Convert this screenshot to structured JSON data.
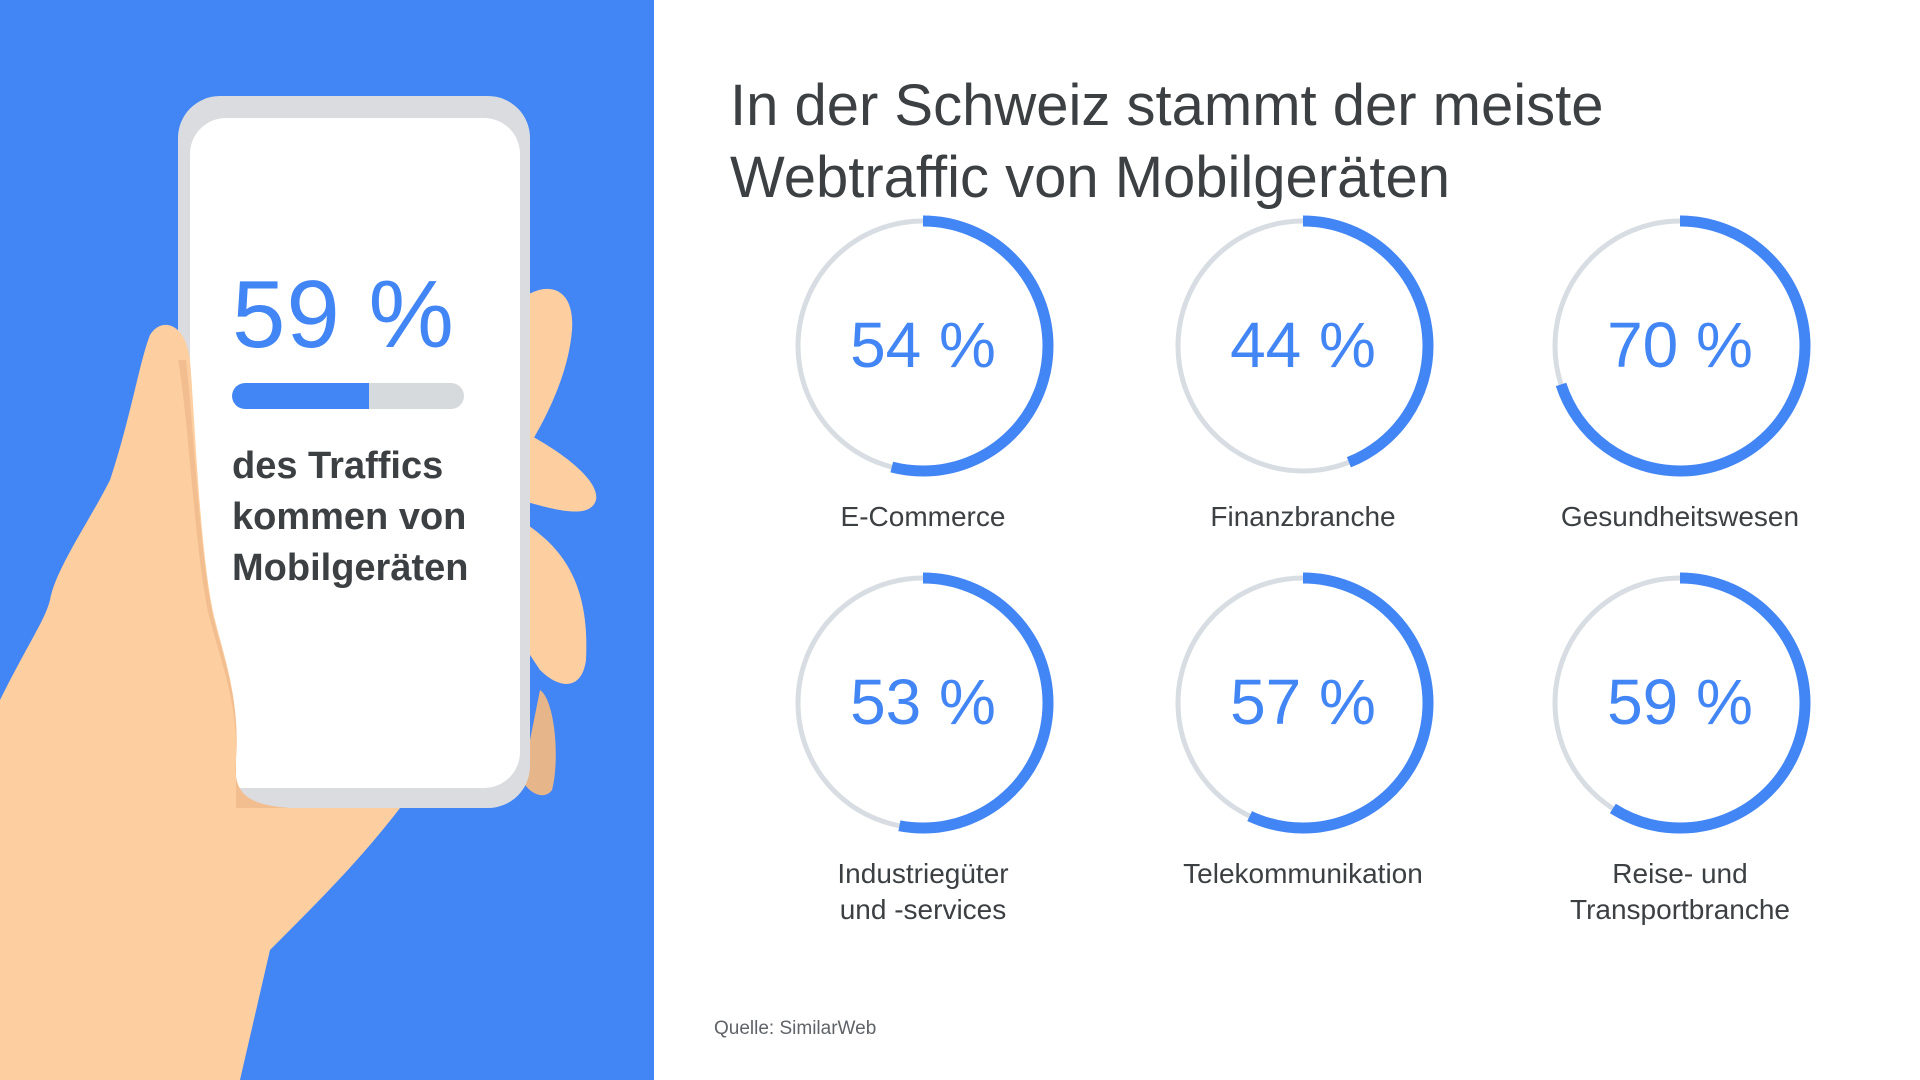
{
  "hero": {
    "value_text": "59 %",
    "fraction": 0.59,
    "caption_lines": [
      "des Traffics",
      "kommen von",
      "Mobilgeräten"
    ]
  },
  "title_lines": [
    "In der Schweiz stammt der meiste",
    "Webtraffic von Mobilgeräten"
  ],
  "chart_data": {
    "type": "donut",
    "title": "In der Schweiz stammt der meiste Webtraffic von Mobilgeräten",
    "unit": "%",
    "ylim": [
      0,
      100
    ],
    "items": [
      {
        "label_lines": [
          "E-Commerce"
        ],
        "value": 54,
        "value_text": "54 %"
      },
      {
        "label_lines": [
          "Finanzbranche"
        ],
        "value": 44,
        "value_text": "44 %"
      },
      {
        "label_lines": [
          "Gesundheitswesen"
        ],
        "value": 70,
        "value_text": "70 %"
      },
      {
        "label_lines": [
          "Industriegüter",
          "und -services"
        ],
        "value": 53,
        "value_text": "53 %"
      },
      {
        "label_lines": [
          "Telekommunikation"
        ],
        "value": 57,
        "value_text": "57 %"
      },
      {
        "label_lines": [
          "Reise- und",
          "Transportbranche"
        ],
        "value": 59,
        "value_text": "59 %"
      }
    ]
  },
  "source": "Quelle: SimilarWeb",
  "colors": {
    "accent": "#4285f4",
    "track": "#d7dde2",
    "text": "#3c4043",
    "skin": "#fdcfa0",
    "skin_shadow": "#e6b58a",
    "phone_frame": "#dadce0"
  }
}
